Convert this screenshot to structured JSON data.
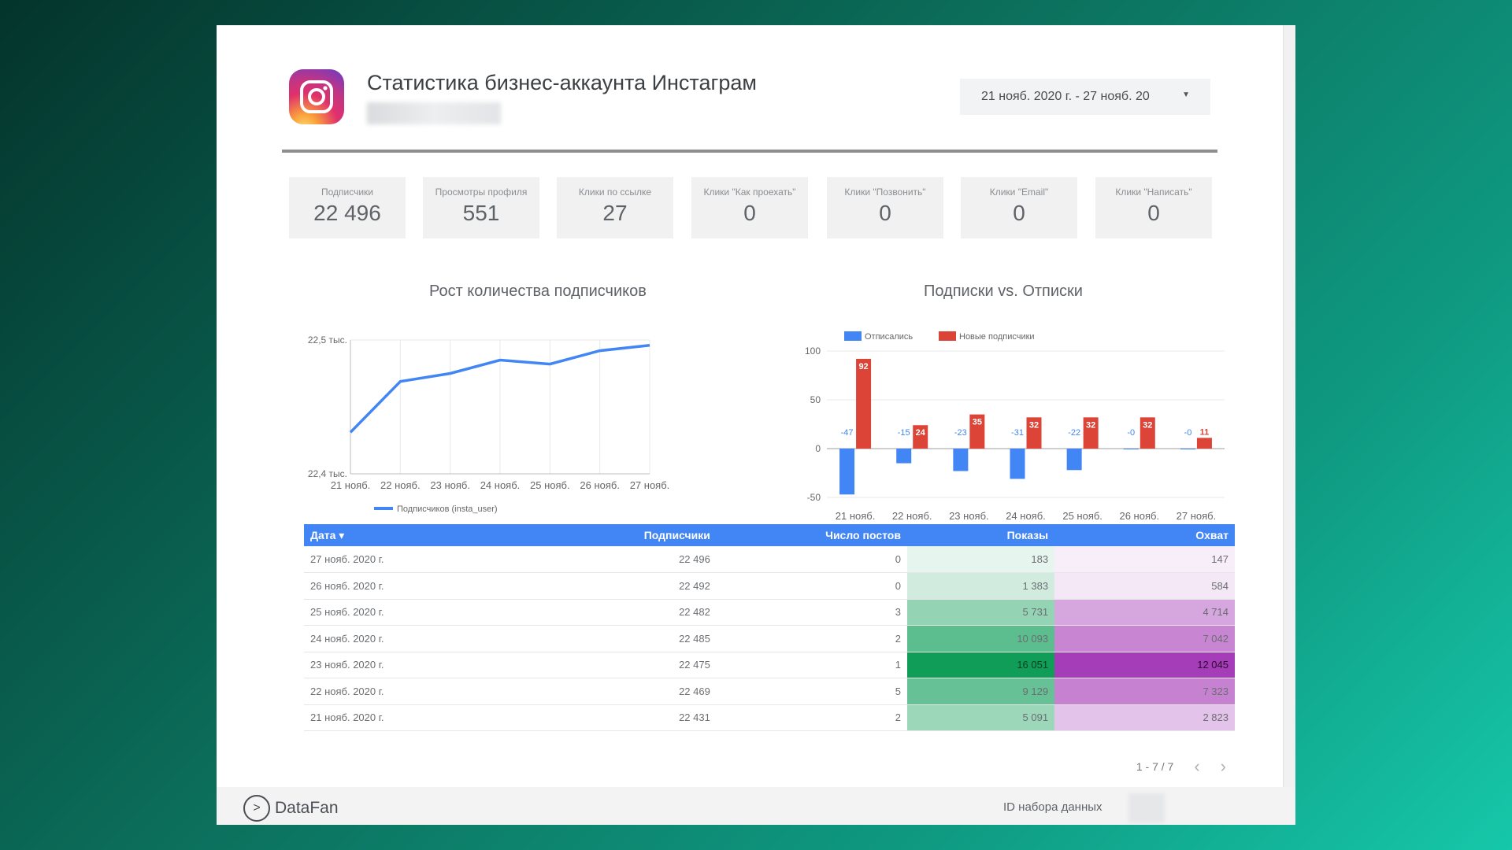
{
  "header": {
    "title": "Статистика бизнес-аккаунта Инстаграм",
    "date_range": "21 нояб. 2020 г. - 27 нояб. 20"
  },
  "kpis": [
    {
      "label": "Подписчики",
      "value": "22 496"
    },
    {
      "label": "Просмотры профиля",
      "value": "551"
    },
    {
      "label": "Клики по ссылке",
      "value": "27"
    },
    {
      "label": "Клики \"Как проехать\"",
      "value": "0"
    },
    {
      "label": "Клики \"Позвонить\"",
      "value": "0"
    },
    {
      "label": "Клики \"Email\"",
      "value": "0"
    },
    {
      "label": "Клики \"Написать\"",
      "value": "0"
    }
  ],
  "chart_data": [
    {
      "type": "line",
      "title": "Рост количества подписчиков",
      "x": [
        "21 нояб.",
        "22 нояб.",
        "23 нояб.",
        "24 нояб.",
        "25 нояб.",
        "26 нояб.",
        "27 нояб."
      ],
      "series": [
        {
          "name": "Подписчиков (insta_user)",
          "values": [
            22431,
            22469,
            22475,
            22485,
            22482,
            22492,
            22496
          ],
          "color": "#4285f4"
        }
      ],
      "ylim": [
        22400,
        22500
      ],
      "y_ticks": [
        "22,4 тыс.",
        "22,5 тыс."
      ],
      "grid": true,
      "legend": "bottom"
    },
    {
      "type": "bar",
      "title": "Подписки vs. Отписки",
      "categories": [
        "21 нояб.",
        "22 нояб.",
        "23 нояб.",
        "24 нояб.",
        "25 нояб.",
        "26 нояб.",
        "27 нояб."
      ],
      "series": [
        {
          "name": "Отписались",
          "values": [
            -47,
            -15,
            -23,
            -31,
            -22,
            0,
            0
          ],
          "labels": [
            "-47",
            "-15",
            "-23",
            "-31",
            "-22",
            "-0",
            "-0"
          ],
          "color": "#4285f4"
        },
        {
          "name": "Новые подписчики",
          "values": [
            92,
            24,
            35,
            32,
            32,
            32,
            11
          ],
          "color": "#db4437"
        }
      ],
      "ylim": [
        -50,
        100
      ],
      "y_ticks": [
        100,
        50,
        0,
        -50
      ],
      "grid": true,
      "legend": "top-left"
    }
  ],
  "table": {
    "columns": [
      "Дата ▾",
      "Подписчики",
      "Число постов",
      "Показы",
      "Охват"
    ],
    "rows": [
      {
        "date": "27 нояб. 2020 г.",
        "subs": "22 496",
        "posts": "0",
        "impr": "183",
        "reach": "147",
        "impr_level": 0.02,
        "reach_level": 0.02
      },
      {
        "date": "26 нояб. 2020 г.",
        "subs": "22 492",
        "posts": "0",
        "impr": "1 383",
        "reach": "584",
        "impr_level": 0.12,
        "reach_level": 0.06
      },
      {
        "date": "25 нояб. 2020 г.",
        "subs": "22 482",
        "posts": "3",
        "impr": "5 731",
        "reach": "4 714",
        "impr_level": 0.4,
        "reach_level": 0.42
      },
      {
        "date": "24 нояб. 2020 г.",
        "subs": "22 485",
        "posts": "2",
        "impr": "10 093",
        "reach": "7 042",
        "impr_level": 0.65,
        "reach_level": 0.6
      },
      {
        "date": "23 нояб. 2020 г.",
        "subs": "22 475",
        "posts": "1",
        "impr": "16 051",
        "reach": "12 045",
        "impr_level": 1.0,
        "reach_level": 1.0
      },
      {
        "date": "22 нояб. 2020 г.",
        "subs": "22 469",
        "posts": "5",
        "impr": "9 129",
        "reach": "7 323",
        "impr_level": 0.6,
        "reach_level": 0.62
      },
      {
        "date": "21 нояб. 2020 г.",
        "subs": "22 431",
        "posts": "2",
        "impr": "5 091",
        "reach": "2 823",
        "impr_level": 0.36,
        "reach_level": 0.26
      }
    ]
  },
  "pager": {
    "range": "1 - 7 / 7",
    "prev": "‹",
    "next": "›"
  },
  "footer": {
    "brand": "DataFan",
    "dataset_label": "ID набора данных"
  },
  "colors": {
    "accent": "#4285f4",
    "red": "#db4437",
    "impr_heat": "#0f9d58",
    "reach_heat": "#9c27b0"
  }
}
